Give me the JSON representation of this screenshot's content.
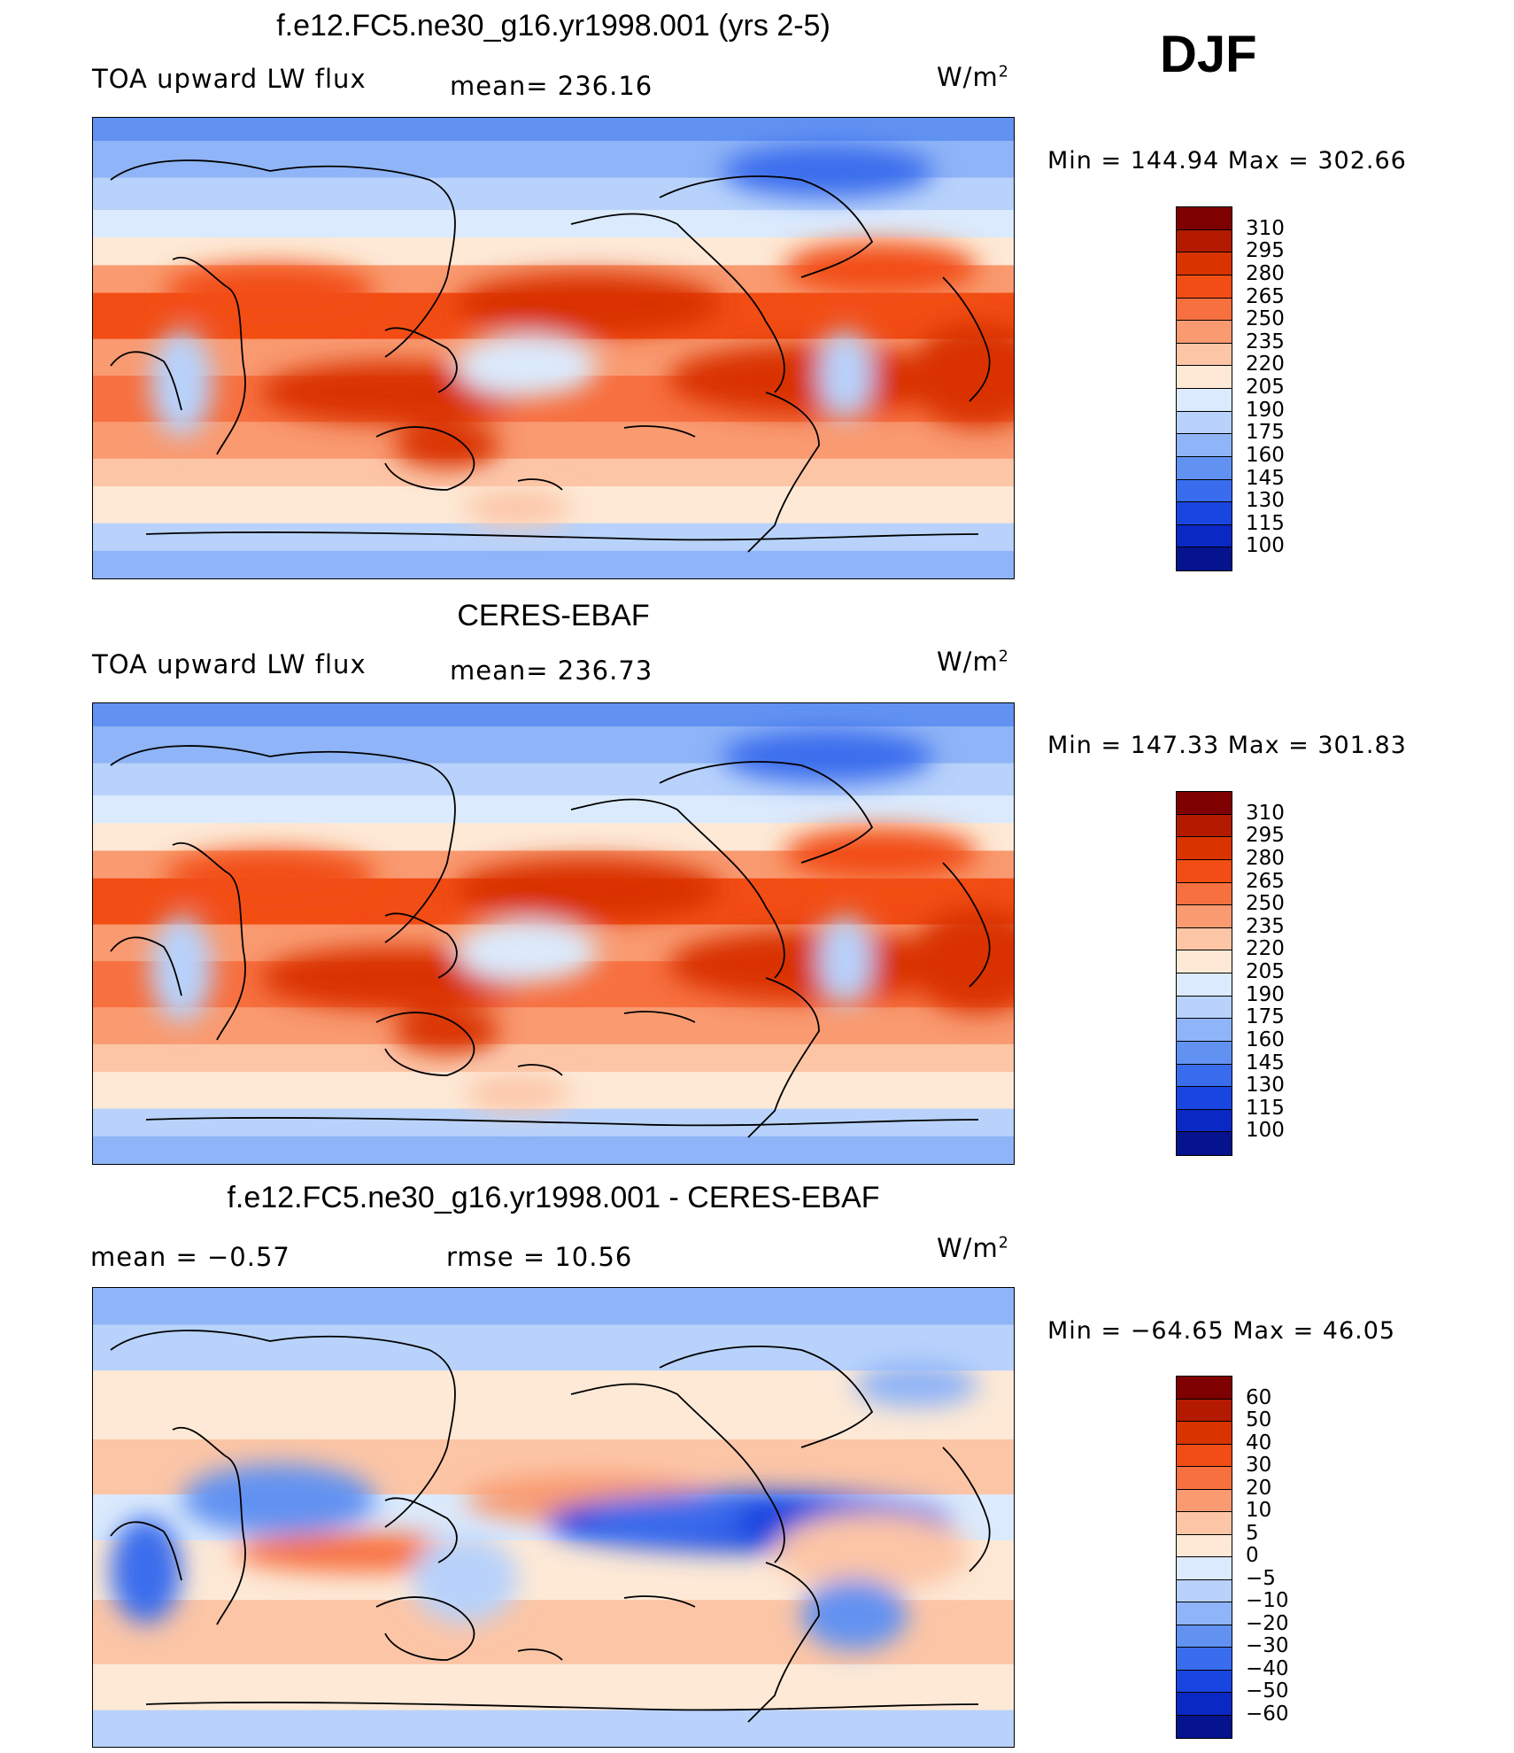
{
  "season": "DJF",
  "units_base": "W/m",
  "units_exp": "2",
  "panels": [
    {
      "title": "f.e12.FC5.ne30_g16.yr1998.001 (yrs 2-5)",
      "left_label": "TOA upward LW flux",
      "mid_label": "mean=  236.16",
      "minmax": "Min  =  144.94  Max  =  302.66",
      "kind": "model"
    },
    {
      "title": "CERES-EBAF",
      "left_label": "TOA upward LW flux",
      "mid_label": "mean=  236.73",
      "minmax": "Min  =  147.33  Max  =  301.83",
      "kind": "obs"
    },
    {
      "title": "f.e12.FC5.ne30_g16.yr1998.001 - CERES-EBAF",
      "left_label": "mean  =    −0.57",
      "mid_label": "rmse  =    10.56",
      "minmax": "Min  =  −64.65  Max  =    46.05",
      "kind": "diff"
    }
  ],
  "colorbars": {
    "flux": {
      "labels": [
        "310",
        "295",
        "280",
        "265",
        "250",
        "235",
        "220",
        "205",
        "190",
        "175",
        "160",
        "145",
        "130",
        "115",
        "100"
      ],
      "colors": [
        "#7f0000",
        "#b31a00",
        "#d93300",
        "#f24d14",
        "#f77040",
        "#f99a70",
        "#fcc5a6",
        "#fde9d6",
        "#dbeafc",
        "#b8d2fb",
        "#8fb4f7",
        "#6292f1",
        "#3a6ded",
        "#1945e0",
        "#0a28c4",
        "#06138e"
      ]
    },
    "diff": {
      "labels": [
        "60",
        "50",
        "40",
        "30",
        "20",
        "10",
        "5",
        "0",
        "−5",
        "−10",
        "−20",
        "−30",
        "−40",
        "−50",
        "−60"
      ],
      "colors": [
        "#7f0000",
        "#b31a00",
        "#d93300",
        "#f24d14",
        "#f77040",
        "#f99a70",
        "#fcc5a6",
        "#fde9d6",
        "#dbeafc",
        "#b8d2fb",
        "#8fb4f7",
        "#6292f1",
        "#3a6ded",
        "#1945e0",
        "#0a28c4",
        "#06138e"
      ]
    }
  }
}
